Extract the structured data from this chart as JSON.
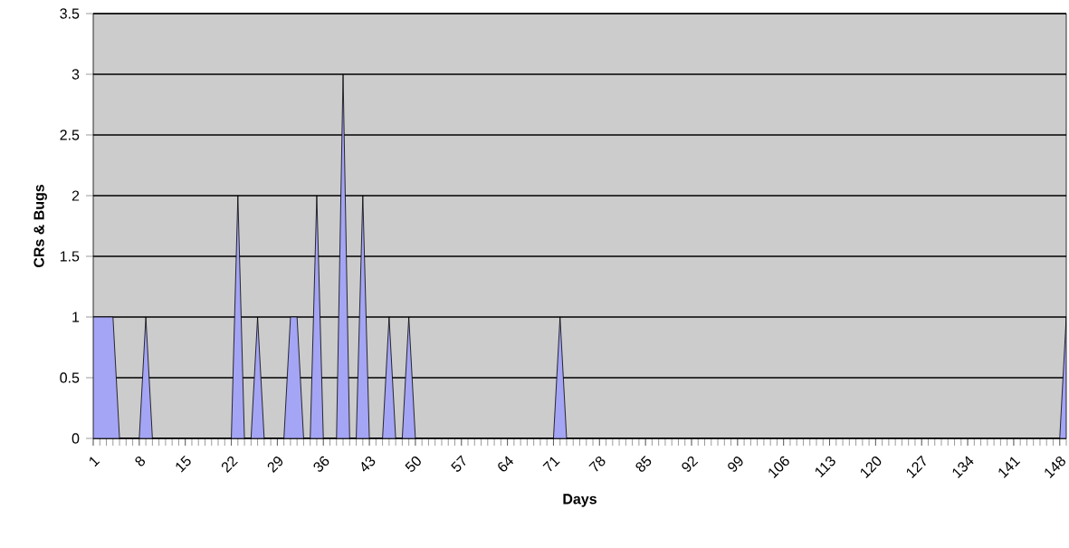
{
  "chart_data": {
    "type": "area",
    "xlabel": "Days",
    "ylabel": "CRs & Bugs",
    "categories": [
      "1",
      null,
      null,
      null,
      null,
      null,
      null,
      "8",
      null,
      null,
      null,
      null,
      null,
      null,
      "15",
      null,
      null,
      null,
      null,
      null,
      null,
      "22",
      null,
      null,
      null,
      null,
      null,
      null,
      "29",
      null,
      null,
      null,
      null,
      null,
      null,
      "36",
      null,
      null,
      null,
      null,
      null,
      null,
      "43",
      null,
      null,
      null,
      null,
      null,
      null,
      "50",
      null,
      null,
      null,
      null,
      null,
      null,
      "57",
      null,
      null,
      null,
      null,
      null,
      null,
      "64",
      null,
      null,
      null,
      null,
      null,
      null,
      "71",
      null,
      null,
      null,
      null,
      null,
      null,
      "78",
      null,
      null,
      null,
      null,
      null,
      null,
      "85",
      null,
      null,
      null,
      null,
      null,
      null,
      "92",
      null,
      null,
      null,
      null,
      null,
      null,
      "99",
      null,
      null,
      null,
      null,
      null,
      null,
      "106",
      null,
      null,
      null,
      null,
      null,
      null,
      "113",
      null,
      null,
      null,
      null,
      null,
      null,
      "120",
      null,
      null,
      null,
      null,
      null,
      null,
      "127",
      null,
      null,
      null,
      null,
      null,
      null,
      "134",
      null,
      null,
      null,
      null,
      null,
      null,
      "141",
      null,
      null,
      null,
      null,
      null,
      null,
      "148",
      null
    ],
    "values": [
      1,
      1,
      1,
      1,
      0,
      0,
      0,
      0,
      1,
      0,
      0,
      0,
      0,
      0,
      0,
      0,
      0,
      0,
      0,
      0,
      0,
      0,
      2,
      0,
      0,
      1,
      0,
      0,
      0,
      0,
      1,
      1,
      0,
      0,
      2,
      0,
      0,
      0,
      3,
      0,
      0,
      2,
      0,
      0,
      0,
      1,
      0,
      0,
      1,
      0,
      0,
      0,
      0,
      0,
      0,
      0,
      0,
      0,
      0,
      0,
      0,
      0,
      0,
      0,
      0,
      0,
      0,
      0,
      0,
      0,
      0,
      1,
      0,
      0,
      0,
      0,
      0,
      0,
      0,
      0,
      0,
      0,
      0,
      0,
      0,
      0,
      0,
      0,
      0,
      0,
      0,
      0,
      0,
      0,
      0,
      0,
      0,
      0,
      0,
      0,
      0,
      0,
      0,
      0,
      0,
      0,
      0,
      0,
      0,
      0,
      0,
      0,
      0,
      0,
      0,
      0,
      0,
      0,
      0,
      0,
      0,
      0,
      0,
      0,
      0,
      0,
      0,
      0,
      0,
      0,
      0,
      0,
      0,
      0,
      0,
      0,
      0,
      0,
      0,
      0,
      0,
      0,
      0,
      0,
      0,
      0,
      0,
      0,
      1
    ],
    "color": "#a5a5f5",
    "ylim": [
      0,
      3.5
    ],
    "yticks": [
      0,
      0.5,
      1,
      1.5,
      2,
      2.5,
      3,
      3.5
    ],
    "grid": "y",
    "marker": "none"
  }
}
